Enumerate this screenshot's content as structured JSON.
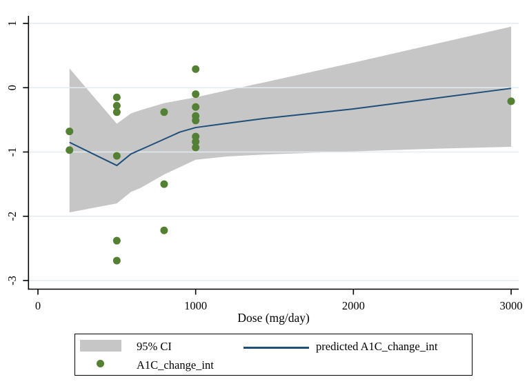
{
  "figure": {
    "background": "#ffffff"
  },
  "style": {
    "axis_color": "#000000",
    "text_color": "#000000",
    "grid_color": "#e2ecef",
    "plot_background": "#ffffff"
  },
  "chart_data": {
    "type": "scatter",
    "title": "",
    "xlabel": "Dose (mg/day)",
    "ylabel": "",
    "xlim": [
      0,
      3100
    ],
    "ylim": [
      -3.15,
      1.1
    ],
    "x_ticks": [
      0,
      1000,
      2000,
      3000
    ],
    "y_ticks": [
      1,
      0,
      -1,
      -2,
      -3
    ],
    "grid": "horizontal",
    "legend_position": "bottom",
    "series": [
      {
        "name": "95% CI",
        "type": "band",
        "color": "#c6c6c6",
        "x": [
          200,
          500,
          590,
          650,
          800,
          1000,
          1200,
          1430,
          2000,
          2500,
          3000
        ],
        "upper": [
          0.3,
          -0.56,
          -0.4,
          -0.35,
          -0.24,
          -0.15,
          -0.04,
          0.08,
          0.39,
          0.67,
          0.95
        ],
        "lower": [
          -1.94,
          -1.8,
          -1.62,
          -1.56,
          -1.35,
          -1.12,
          -1.07,
          -1.04,
          -0.99,
          -0.95,
          -0.92
        ]
      },
      {
        "name": "predicted A1C_change_int",
        "type": "line",
        "color": "#1f4e79",
        "x": [
          200,
          500,
          590,
          700,
          800,
          900,
          1000,
          1150,
          1430,
          2000,
          2500,
          3000
        ],
        "y": [
          -0.85,
          -1.21,
          -1.03,
          -0.91,
          -0.8,
          -0.69,
          -0.62,
          -0.57,
          -0.48,
          -0.33,
          -0.17,
          -0.01
        ]
      },
      {
        "name": "A1C_change_int",
        "type": "scatter",
        "color": "#538032",
        "points": [
          {
            "x": 200,
            "y": -0.68
          },
          {
            "x": 200,
            "y": -0.97
          },
          {
            "x": 500,
            "y": -0.15
          },
          {
            "x": 500,
            "y": -0.28
          },
          {
            "x": 500,
            "y": -0.38
          },
          {
            "x": 500,
            "y": -1.06
          },
          {
            "x": 500,
            "y": -2.38
          },
          {
            "x": 500,
            "y": -2.69
          },
          {
            "x": 800,
            "y": -0.38
          },
          {
            "x": 800,
            "y": -1.5
          },
          {
            "x": 800,
            "y": -2.22
          },
          {
            "x": 1000,
            "y": 0.29
          },
          {
            "x": 1000,
            "y": -0.1
          },
          {
            "x": 1000,
            "y": -0.3
          },
          {
            "x": 1000,
            "y": -0.44
          },
          {
            "x": 1000,
            "y": -0.51
          },
          {
            "x": 1000,
            "y": -0.76
          },
          {
            "x": 1000,
            "y": -0.84
          },
          {
            "x": 1000,
            "y": -0.93
          },
          {
            "x": 3000,
            "y": -0.21
          }
        ]
      }
    ]
  },
  "legend": {
    "ci_label": "95% CI",
    "line_label": "predicted A1C_change_int",
    "scatter_label": "A1C_change_int"
  }
}
